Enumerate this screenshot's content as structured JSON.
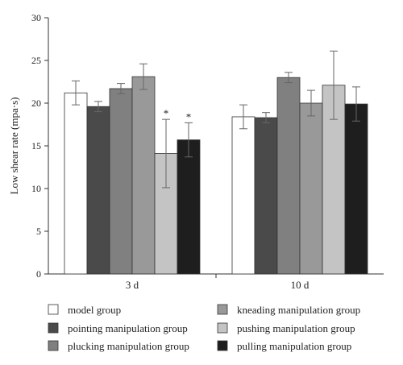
{
  "chart_data": {
    "type": "bar",
    "title": "",
    "xlabel": "",
    "ylabel": "Low shear rate (mpa·s)",
    "ylim": [
      0,
      30
    ],
    "yticks": [
      0,
      5,
      10,
      15,
      20,
      25,
      30
    ],
    "grid": false,
    "legend_position": "bottom",
    "categories": [
      "3 d",
      "10 d"
    ],
    "series": [
      {
        "name": "model group",
        "color": "#ffffff",
        "values": [
          21.2,
          18.4
        ],
        "errors": [
          1.4,
          1.4
        ],
        "significance": [
          "",
          ""
        ]
      },
      {
        "name": "pointing manipulation group",
        "color": "#4a4a4a",
        "values": [
          19.6,
          18.3
        ],
        "errors": [
          0.6,
          0.6
        ],
        "significance": [
          "",
          ""
        ]
      },
      {
        "name": "plucking manipulation group",
        "color": "#808080",
        "values": [
          21.7,
          23.0
        ],
        "errors": [
          0.6,
          0.6
        ],
        "significance": [
          "",
          ""
        ]
      },
      {
        "name": "kneading manipulation group",
        "color": "#999999",
        "values": [
          23.1,
          20.0
        ],
        "errors": [
          1.5,
          1.5
        ],
        "significance": [
          "",
          ""
        ]
      },
      {
        "name": "pushing manipulation group",
        "color": "#c4c4c4",
        "values": [
          14.1,
          22.1
        ],
        "errors": [
          4.0,
          4.0
        ],
        "significance": [
          "*",
          ""
        ]
      },
      {
        "name": "pulling manipulation group",
        "color": "#1e1e1e",
        "values": [
          15.7,
          19.9
        ],
        "errors": [
          2.0,
          2.0
        ],
        "significance": [
          "*",
          ""
        ]
      }
    ]
  }
}
